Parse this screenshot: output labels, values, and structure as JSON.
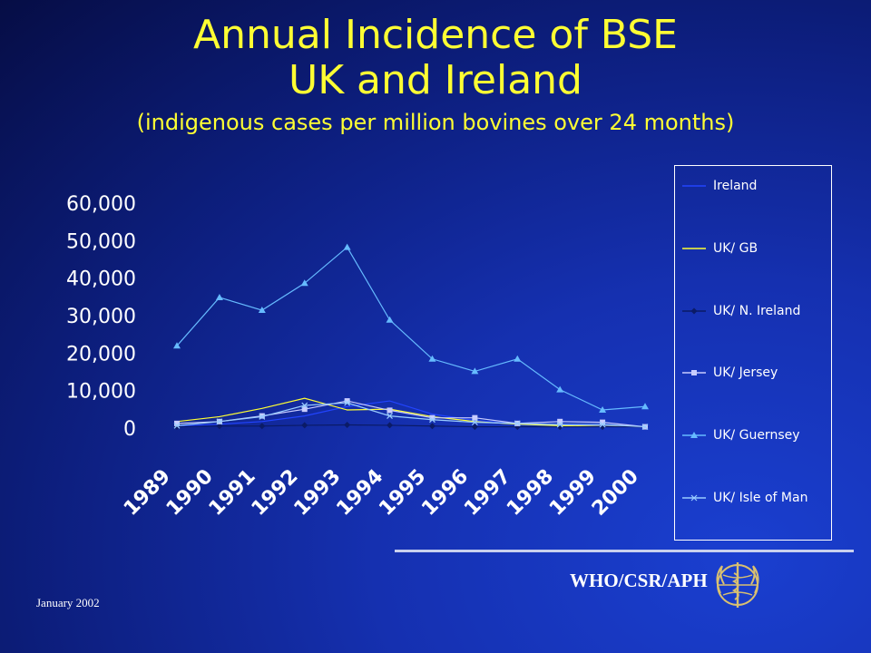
{
  "slide": {
    "title_line1": "Annual Incidence of BSE",
    "title_line2": "UK and Ireland",
    "subtitle": "(indigenous cases per million bovines over 24 months)",
    "footer_org": "WHO/CSR/APH",
    "footer_date": "January 2002",
    "logo_icon": "who-emblem-icon"
  },
  "colors": {
    "title": "#ffff33",
    "axis_text": "#ffffff",
    "background": "#1530b0"
  },
  "chart_data": {
    "type": "line",
    "title": "",
    "xlabel": "",
    "ylabel": "",
    "categories": [
      "1989",
      "1990",
      "1991",
      "1992",
      "1993",
      "1994",
      "1995",
      "1996",
      "1997",
      "1998",
      "1999",
      "2000"
    ],
    "ylim": [
      0,
      60000
    ],
    "yticks": [
      "0",
      "10,000",
      "20,000",
      "30,000",
      "40,000",
      "50,000",
      "60,000"
    ],
    "grid": false,
    "legend_position": "right",
    "series": [
      {
        "name": "Ireland",
        "color": "#2244ff",
        "marker": "none",
        "values": [
          300,
          800,
          1500,
          3000,
          5500,
          7000,
          3500,
          1800,
          900,
          500,
          300,
          100
        ]
      },
      {
        "name": "UK/ GB",
        "color": "#ffff33",
        "marker": "none",
        "values": [
          1500,
          2800,
          5000,
          7700,
          4600,
          4800,
          2800,
          1500,
          800,
          400,
          200,
          100
        ]
      },
      {
        "name": "UK/ N. Ireland",
        "color": "#0b1b66",
        "marker": "diamond",
        "values": [
          100,
          300,
          300,
          500,
          600,
          500,
          300,
          100,
          100,
          100,
          100,
          100
        ]
      },
      {
        "name": "UK/ Jersey",
        "color": "#c8ccff",
        "marker": "square",
        "values": [
          1000,
          1500,
          3000,
          4800,
          7000,
          4500,
          2500,
          2500,
          1000,
          1500,
          1300,
          100
        ]
      },
      {
        "name": "UK/ Guernsey",
        "color": "#66bbff",
        "marker": "triangle",
        "values": [
          21700,
          34600,
          31200,
          38400,
          48000,
          28600,
          18200,
          14900,
          18200,
          10000,
          4600,
          5500
        ]
      },
      {
        "name": "UK/ Isle of Man",
        "color": "#99ccff",
        "marker": "cross",
        "values": [
          400,
          1500,
          2800,
          5800,
          6500,
          3000,
          2000,
          1300,
          1000,
          700,
          700,
          100
        ]
      }
    ]
  }
}
